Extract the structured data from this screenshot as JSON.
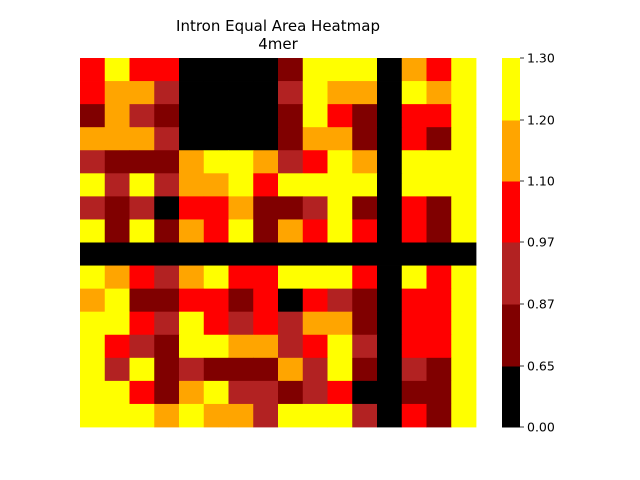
{
  "chart_data": {
    "type": "heatmap",
    "title": "Intron Equal Area Heatmap",
    "subtitle": "4mer",
    "n_rows": 16,
    "n_cols": 16,
    "colorbar": {
      "ticks": [
        "1.30",
        "1.20",
        "1.10",
        "0.97",
        "0.87",
        "0.65",
        "0.00"
      ],
      "bins": [
        {
          "level": 0,
          "color": "#000000",
          "range": [
            0.0,
            0.65
          ]
        },
        {
          "level": 1,
          "color": "#800000",
          "range": [
            0.65,
            0.87
          ]
        },
        {
          "level": 2,
          "color": "#b22222",
          "range": [
            0.87,
            0.97
          ]
        },
        {
          "level": 3,
          "color": "#ff0000",
          "range": [
            0.97,
            1.1
          ]
        },
        {
          "level": 4,
          "color": "#ffa500",
          "range": [
            1.1,
            1.2
          ]
        },
        {
          "level": 5,
          "color": "#ffff00",
          "range": [
            1.2,
            1.3
          ]
        }
      ]
    },
    "grid_levels": [
      [
        3,
        5,
        3,
        3,
        0,
        0,
        0,
        0,
        1,
        5,
        5,
        5,
        0,
        4,
        3,
        5
      ],
      [
        3,
        4,
        4,
        2,
        0,
        0,
        0,
        0,
        2,
        5,
        4,
        4,
        0,
        5,
        4,
        5
      ],
      [
        1,
        4,
        2,
        1,
        0,
        0,
        0,
        0,
        1,
        5,
        3,
        1,
        0,
        3,
        3,
        5
      ],
      [
        4,
        4,
        4,
        2,
        0,
        0,
        0,
        0,
        1,
        4,
        4,
        1,
        0,
        3,
        1,
        5
      ],
      [
        2,
        1,
        1,
        1,
        4,
        5,
        5,
        4,
        2,
        3,
        5,
        4,
        0,
        5,
        5,
        5
      ],
      [
        5,
        2,
        5,
        2,
        4,
        4,
        5,
        3,
        5,
        5,
        5,
        5,
        0,
        5,
        5,
        5
      ],
      [
        2,
        1,
        2,
        0,
        3,
        3,
        4,
        1,
        1,
        2,
        5,
        1,
        0,
        3,
        1,
        5
      ],
      [
        5,
        1,
        5,
        1,
        4,
        3,
        5,
        1,
        4,
        3,
        5,
        3,
        0,
        3,
        1,
        5
      ],
      [
        0,
        0,
        0,
        0,
        0,
        0,
        0,
        0,
        0,
        0,
        0,
        0,
        0,
        0,
        0,
        0
      ],
      [
        5,
        4,
        3,
        2,
        4,
        5,
        3,
        3,
        5,
        5,
        5,
        3,
        0,
        5,
        3,
        5
      ],
      [
        4,
        5,
        1,
        1,
        3,
        3,
        1,
        3,
        0,
        3,
        2,
        1,
        0,
        3,
        3,
        5
      ],
      [
        5,
        5,
        3,
        2,
        5,
        3,
        2,
        3,
        2,
        4,
        4,
        1,
        0,
        3,
        3,
        5
      ],
      [
        5,
        3,
        2,
        1,
        5,
        5,
        4,
        4,
        2,
        3,
        5,
        2,
        0,
        3,
        3,
        5
      ],
      [
        5,
        2,
        5,
        1,
        2,
        1,
        1,
        1,
        4,
        2,
        5,
        1,
        0,
        2,
        1,
        5
      ],
      [
        5,
        5,
        3,
        1,
        4,
        5,
        2,
        2,
        1,
        2,
        3,
        0,
        0,
        1,
        1,
        5
      ],
      [
        5,
        5,
        5,
        4,
        5,
        4,
        4,
        2,
        5,
        5,
        5,
        2,
        0,
        3,
        1,
        5
      ]
    ]
  }
}
